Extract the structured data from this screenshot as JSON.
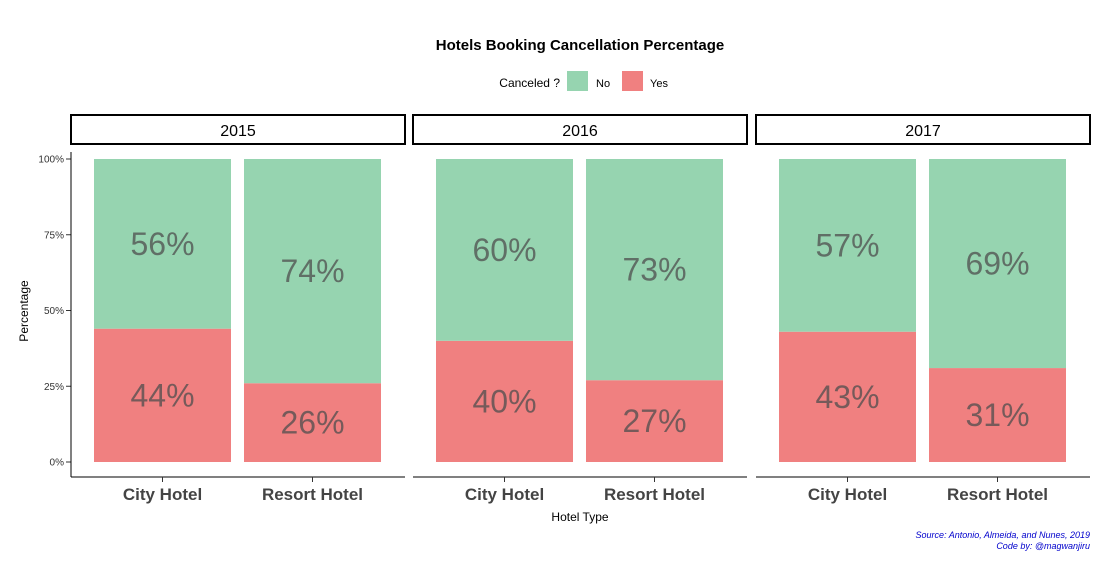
{
  "chart_data": {
    "type": "bar",
    "stacked": true,
    "percent": true,
    "title": "Hotels Booking Cancellation Percentage",
    "legend": {
      "title": "Canceled ?",
      "position": "top",
      "items": [
        {
          "name": "No",
          "color": "#96d4b0"
        },
        {
          "name": "Yes",
          "color": "#f08080"
        }
      ]
    },
    "xlabel": "Hotel Type",
    "ylabel": "Percentage",
    "ylim": [
      0,
      100
    ],
    "yticks": [
      "0%",
      "25%",
      "50%",
      "75%",
      "100%"
    ],
    "grid": false,
    "categories": [
      "City Hotel",
      "Resort Hotel"
    ],
    "facets": [
      {
        "label": "2015",
        "series": [
          {
            "name": "No",
            "values": [
              56,
              74
            ],
            "labels": [
              "56%",
              "74%"
            ]
          },
          {
            "name": "Yes",
            "values": [
              44,
              26
            ],
            "labels": [
              "44%",
              "26%"
            ]
          }
        ]
      },
      {
        "label": "2016",
        "series": [
          {
            "name": "No",
            "values": [
              60,
              73
            ],
            "labels": [
              "60%",
              "73%"
            ]
          },
          {
            "name": "Yes",
            "values": [
              40,
              27
            ],
            "labels": [
              "40%",
              "27%"
            ]
          }
        ]
      },
      {
        "label": "2017",
        "series": [
          {
            "name": "No",
            "values": [
              57,
              69
            ],
            "labels": [
              "57%",
              "69%"
            ]
          },
          {
            "name": "Yes",
            "values": [
              43,
              31
            ],
            "labels": [
              "43%",
              "31%"
            ]
          }
        ]
      }
    ],
    "caption": [
      "Source: Antonio, Almeida, and Nunes, 2019",
      "Code by: @magwanjiru"
    ]
  }
}
